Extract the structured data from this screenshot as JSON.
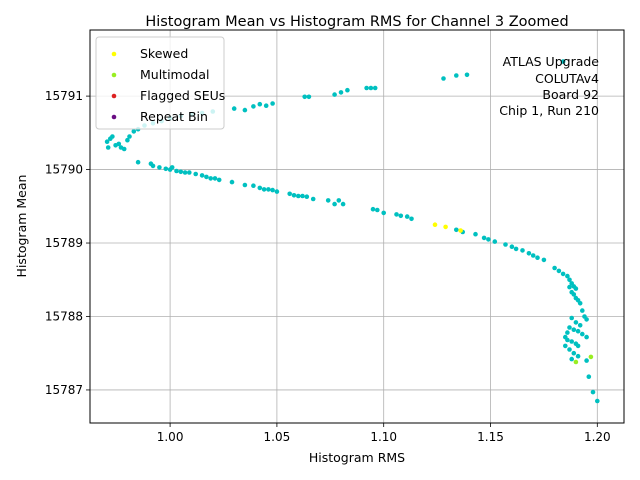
{
  "chart_data": {
    "type": "scatter",
    "title": "Histogram Mean vs Histogram RMS for Channel 3 Zoomed",
    "xlabel": "Histogram RMS",
    "ylabel": "Histogram Mean",
    "xlim": [
      0.9625,
      1.2125
    ],
    "ylim": [
      15786.55,
      15791.9
    ],
    "x_ticks": [
      1.0,
      1.05,
      1.1,
      1.15,
      1.2
    ],
    "x_tick_labels": [
      "1.00",
      "1.05",
      "1.10",
      "1.15",
      "1.20"
    ],
    "y_ticks": [
      15787,
      15788,
      15789,
      15790,
      15791
    ],
    "y_tick_labels": [
      "15787",
      "15788",
      "15789",
      "15790",
      "15791"
    ],
    "grid": true,
    "legend_position": "top-left",
    "annotation_lines": [
      "ATLAS Upgrade",
      "COLUTAv4",
      "Board 92",
      "Chip 1, Run 210"
    ],
    "series": [
      {
        "name": "Skewed",
        "color": "#ffff00",
        "points": [
          [
            1.124,
            15789.25
          ],
          [
            1.129,
            15789.22
          ],
          [
            1.136,
            15789.17
          ]
        ]
      },
      {
        "name": "Multimodal",
        "color": "#99ee22",
        "points": [
          [
            1.19,
            15787.38
          ],
          [
            1.197,
            15787.45
          ]
        ]
      },
      {
        "name": "Flagged SEUs",
        "color": "#dd2222",
        "points": []
      },
      {
        "name": "Repeat Bin",
        "color": "#6a0d83",
        "points": []
      },
      {
        "name": "",
        "color": "#00c0c0",
        "points": [
          [
            0.9705,
            15790.38
          ],
          [
            0.971,
            15790.3
          ],
          [
            0.972,
            15790.42
          ],
          [
            0.973,
            15790.45
          ],
          [
            0.9745,
            15790.33
          ],
          [
            0.976,
            15790.35
          ],
          [
            0.977,
            15790.3
          ],
          [
            0.9785,
            15790.28
          ],
          [
            0.98,
            15790.4
          ],
          [
            0.981,
            15790.45
          ],
          [
            0.983,
            15790.52
          ],
          [
            0.985,
            15790.55
          ],
          [
            0.988,
            15790.6
          ],
          [
            0.992,
            15790.63
          ],
          [
            0.996,
            15790.66
          ],
          [
            1.0,
            15790.7
          ],
          [
            1.005,
            15790.73
          ],
          [
            1.01,
            15790.75
          ],
          [
            1.015,
            15790.77
          ],
          [
            1.02,
            15790.79
          ],
          [
            1.03,
            15790.83
          ],
          [
            1.035,
            15790.81
          ],
          [
            1.039,
            15790.86
          ],
          [
            1.042,
            15790.89
          ],
          [
            1.045,
            15790.87
          ],
          [
            1.048,
            15790.9
          ],
          [
            1.063,
            15790.99
          ],
          [
            1.065,
            15790.99
          ],
          [
            1.077,
            15791.02
          ],
          [
            1.08,
            15791.05
          ],
          [
            1.083,
            15791.08
          ],
          [
            1.092,
            15791.11
          ],
          [
            1.094,
            15791.11
          ],
          [
            1.096,
            15791.11
          ],
          [
            1.128,
            15791.24
          ],
          [
            1.134,
            15791.28
          ],
          [
            1.139,
            15791.29
          ],
          [
            1.184,
            15791.47
          ],
          [
            0.985,
            15790.1
          ],
          [
            0.991,
            15790.08
          ],
          [
            0.992,
            15790.05
          ],
          [
            0.995,
            15790.03
          ],
          [
            0.998,
            15790.01
          ],
          [
            1.0,
            15790.0
          ],
          [
            1.001,
            15790.03
          ],
          [
            1.003,
            15789.98
          ],
          [
            1.005,
            15789.97
          ],
          [
            1.007,
            15789.96
          ],
          [
            1.009,
            15789.96
          ],
          [
            1.012,
            15789.94
          ],
          [
            1.015,
            15789.92
          ],
          [
            1.017,
            15789.9
          ],
          [
            1.019,
            15789.88
          ],
          [
            1.021,
            15789.88
          ],
          [
            1.023,
            15789.86
          ],
          [
            1.029,
            15789.83
          ],
          [
            1.035,
            15789.79
          ],
          [
            1.039,
            15789.78
          ],
          [
            1.042,
            15789.75
          ],
          [
            1.044,
            15789.73
          ],
          [
            1.046,
            15789.73
          ],
          [
            1.048,
            15789.72
          ],
          [
            1.05,
            15789.7
          ],
          [
            1.056,
            15789.67
          ],
          [
            1.058,
            15789.65
          ],
          [
            1.06,
            15789.64
          ],
          [
            1.062,
            15789.64
          ],
          [
            1.064,
            15789.63
          ],
          [
            1.067,
            15789.6
          ],
          [
            1.074,
            15789.58
          ],
          [
            1.077,
            15789.53
          ],
          [
            1.079,
            15789.58
          ],
          [
            1.081,
            15789.53
          ],
          [
            1.095,
            15789.46
          ],
          [
            1.097,
            15789.45
          ],
          [
            1.1,
            15789.41
          ],
          [
            1.106,
            15789.39
          ],
          [
            1.108,
            15789.37
          ],
          [
            1.111,
            15789.36
          ],
          [
            1.113,
            15789.33
          ],
          [
            1.134,
            15789.18
          ],
          [
            1.137,
            15789.15
          ],
          [
            1.143,
            15789.12
          ],
          [
            1.147,
            15789.07
          ],
          [
            1.149,
            15789.05
          ],
          [
            1.152,
            15789.02
          ],
          [
            1.157,
            15788.98
          ],
          [
            1.16,
            15788.95
          ],
          [
            1.162,
            15788.92
          ],
          [
            1.165,
            15788.9
          ],
          [
            1.168,
            15788.86
          ],
          [
            1.17,
            15788.83
          ],
          [
            1.172,
            15788.8
          ],
          [
            1.175,
            15788.77
          ],
          [
            1.18,
            15788.66
          ],
          [
            1.182,
            15788.62
          ],
          [
            1.184,
            15788.58
          ],
          [
            1.186,
            15788.55
          ],
          [
            1.187,
            15788.5
          ],
          [
            1.188,
            15788.45
          ],
          [
            1.189,
            15788.41
          ],
          [
            1.19,
            15788.38
          ],
          [
            1.187,
            15788.4
          ],
          [
            1.188,
            15788.33
          ],
          [
            1.189,
            15788.3
          ],
          [
            1.19,
            15788.25
          ],
          [
            1.191,
            15788.22
          ],
          [
            1.192,
            15788.18
          ],
          [
            1.193,
            15788.08
          ],
          [
            1.194,
            15788.0
          ],
          [
            1.195,
            15787.96
          ],
          [
            1.188,
            15787.98
          ],
          [
            1.19,
            15787.92
          ],
          [
            1.192,
            15787.88
          ],
          [
            1.187,
            15787.85
          ],
          [
            1.189,
            15787.82
          ],
          [
            1.191,
            15787.8
          ],
          [
            1.193,
            15787.76
          ],
          [
            1.195,
            15787.72
          ],
          [
            1.186,
            15787.78
          ],
          [
            1.185,
            15787.72
          ],
          [
            1.186,
            15787.68
          ],
          [
            1.188,
            15787.66
          ],
          [
            1.19,
            15787.63
          ],
          [
            1.191,
            15787.6
          ],
          [
            1.185,
            15787.6
          ],
          [
            1.187,
            15787.55
          ],
          [
            1.189,
            15787.5
          ],
          [
            1.191,
            15787.46
          ],
          [
            1.188,
            15787.42
          ],
          [
            1.195,
            15787.4
          ],
          [
            1.196,
            15787.18
          ],
          [
            1.198,
            15786.97
          ],
          [
            1.2,
            15786.85
          ]
        ]
      }
    ]
  }
}
